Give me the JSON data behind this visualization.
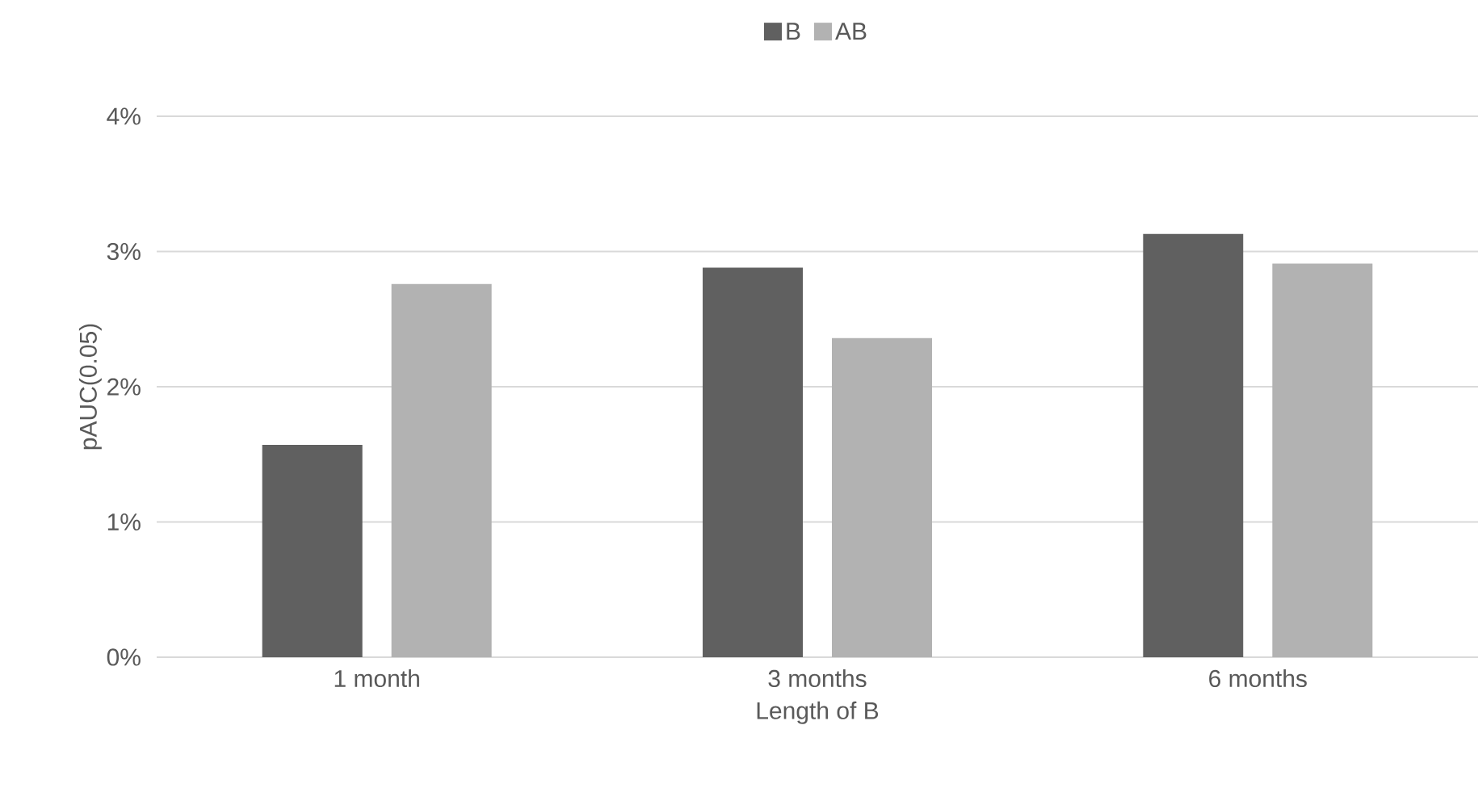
{
  "chart_data": {
    "type": "bar",
    "categories": [
      "1 month",
      "3 months",
      "6 months"
    ],
    "series": [
      {
        "name": "B",
        "color": "#606060",
        "values": [
          1.57,
          2.88,
          3.13
        ]
      },
      {
        "name": "AB",
        "color": "#b2b2b2",
        "values": [
          2.76,
          2.36,
          2.91
        ]
      }
    ],
    "xlabel": "Length of B",
    "ylabel": "pAUC(0.05)",
    "ylim": [
      0,
      4
    ],
    "yticks": [
      {
        "value": 0,
        "label": "0%"
      },
      {
        "value": 1,
        "label": "1%"
      },
      {
        "value": 2,
        "label": "2%"
      },
      {
        "value": 3,
        "label": "3%"
      },
      {
        "value": 4,
        "label": "4%"
      }
    ],
    "grid": "y",
    "legend": "top"
  }
}
